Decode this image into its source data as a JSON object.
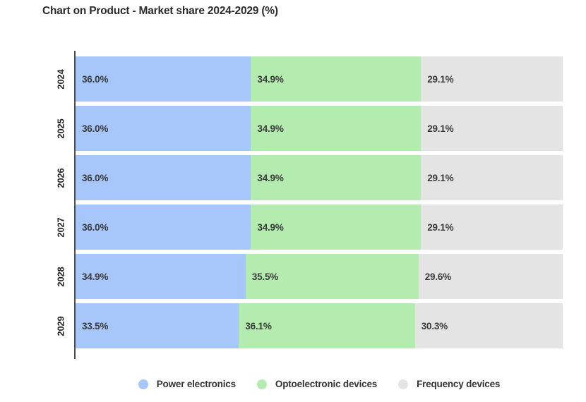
{
  "title": "Chart on Product - Market share 2024-2029 (%)",
  "colors": {
    "power_electronics": "#a7c7fa",
    "optoelectronic_devices": "#b4ecb0",
    "frequency_devices": "#e4e4e4",
    "axis_line": "#4b4b4b",
    "value_label": "#3a3a3a",
    "title_text": "#2b2b2b",
    "background": "#ffffff"
  },
  "chart_data": {
    "type": "bar",
    "subtype": "stacked-horizontal-percent",
    "title": "Chart on Product - Market share 2024-2029 (%)",
    "unit": "%",
    "xlim": [
      0,
      100
    ],
    "grid": false,
    "legend_position": "bottom",
    "categories": [
      "2024",
      "2025",
      "2026",
      "2027",
      "2028",
      "2029"
    ],
    "series": [
      {
        "name": "Power electronics",
        "color": "#a7c7fa",
        "values": [
          36.0,
          36.0,
          36.0,
          36.0,
          34.9,
          33.5
        ]
      },
      {
        "name": "Optoelectronic devices",
        "color": "#b4ecb0",
        "values": [
          34.9,
          34.9,
          34.9,
          34.9,
          35.5,
          36.1
        ]
      },
      {
        "name": "Frequency devices",
        "color": "#e4e4e4",
        "values": [
          29.1,
          29.1,
          29.1,
          29.1,
          29.6,
          30.3
        ]
      }
    ],
    "value_label_format": "{value}%"
  }
}
